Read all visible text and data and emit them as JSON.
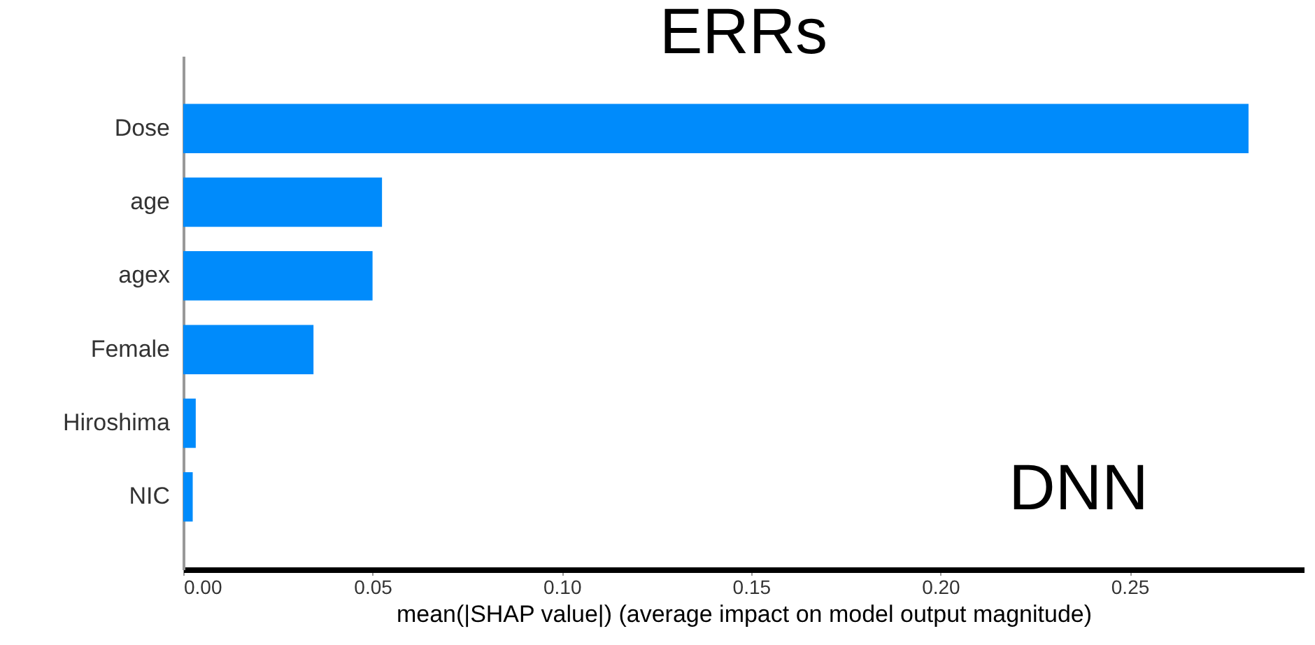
{
  "chart_data": {
    "type": "bar",
    "orientation": "horizontal",
    "title": "ERRs",
    "xlabel": "mean(|SHAP value|) (average impact on model output magnitude)",
    "categories": [
      "Dose",
      "age",
      "agex",
      "Female",
      "Hiroshima",
      "NIC"
    ],
    "values": [
      0.2814,
      0.0525,
      0.05,
      0.0344,
      0.0033,
      0.0025
    ],
    "color": "#008bfb",
    "xlim": [
      0,
      0.296
    ],
    "xticks": [
      {
        "value": 0,
        "label": "0.00"
      },
      {
        "value": 0.05,
        "label": "0.05"
      },
      {
        "value": 0.1,
        "label": "0.10"
      },
      {
        "value": 0.15,
        "label": "0.15"
      },
      {
        "value": 0.2,
        "label": "0.20"
      },
      {
        "value": 0.25,
        "label": "0.25"
      }
    ],
    "annotations": [
      "DNN"
    ]
  }
}
